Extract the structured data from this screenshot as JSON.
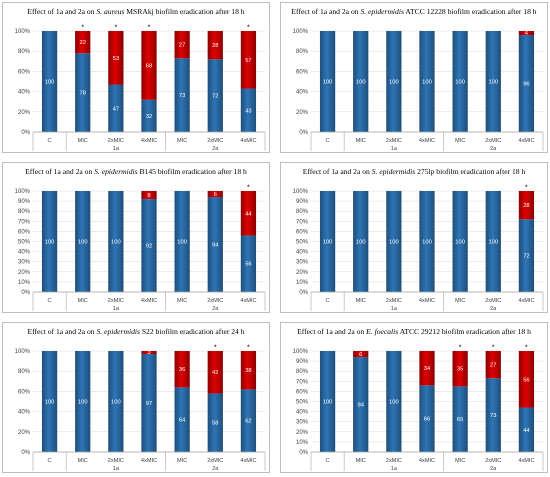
{
  "colors": {
    "blue": "#2e75b6",
    "blue_dark": "#1f4e79",
    "red": "#e00000",
    "red_dark": "#8b0000",
    "grid": "#d9d9d9",
    "axis": "#a6a6a6"
  },
  "chart_data": [
    {
      "type": "bar",
      "stacked": true,
      "title_parts": [
        "Effect of 1a and 2a on ",
        "S. aureus",
        " MSRAkj  biofilm eradication after 18 h"
      ],
      "categories": [
        "C",
        "MIC",
        "2xMIC",
        "4xMIC",
        "MIC",
        "2xMIC",
        "4xMIC"
      ],
      "groups": [
        {
          "label": "1a",
          "from": 1,
          "to": 3
        },
        {
          "label": "2a",
          "from": 4,
          "to": 6
        }
      ],
      "series": [
        {
          "values": [
            100,
            78,
            47,
            32,
            73,
            72,
            43
          ],
          "labels": [
            "100",
            "78",
            "47",
            "32",
            "73",
            "72",
            "43"
          ]
        },
        {
          "values": [
            0,
            22,
            53,
            68,
            27,
            28,
            57
          ],
          "labels": [
            "",
            "22",
            "53",
            "68",
            "27",
            "28",
            "57"
          ]
        }
      ],
      "significant": [
        false,
        true,
        true,
        true,
        false,
        false,
        true
      ],
      "star": "*",
      "ylim": [
        0,
        100
      ],
      "yticks": [
        "0%",
        "20%",
        "40%",
        "60%",
        "80%",
        "100%"
      ]
    },
    {
      "type": "bar",
      "stacked": true,
      "title_parts": [
        "Effect of 1a and 2a on ",
        "S. epidermidis",
        " ATCC 12228 biofilm eradication after 18 h"
      ],
      "categories": [
        "C",
        "MIC",
        "2xMIC",
        "4xMIC",
        "MIC",
        "2xMIC",
        "4xMIC"
      ],
      "groups": [
        {
          "label": "1a",
          "from": 1,
          "to": 3
        },
        {
          "label": "2a",
          "from": 4,
          "to": 6
        }
      ],
      "series": [
        {
          "values": [
            100,
            100,
            100,
            100,
            100,
            100,
            96
          ],
          "labels": [
            "100",
            "100",
            "100",
            "100",
            "100",
            "100",
            "96"
          ]
        },
        {
          "values": [
            0,
            0,
            0,
            0,
            0,
            0,
            4
          ],
          "labels": [
            "",
            "",
            "",
            "",
            "",
            "",
            "4"
          ]
        }
      ],
      "significant": [
        false,
        false,
        false,
        false,
        false,
        false,
        false
      ],
      "star": "*",
      "ylim": [
        0,
        100
      ],
      "yticks": [
        "0%",
        "20%",
        "40%",
        "60%",
        "80%",
        "100%"
      ]
    },
    {
      "type": "bar",
      "stacked": true,
      "title_parts": [
        "Effect of 1a and 2a on ",
        "S. epidermidis",
        " B145 biofilm eradication after 18 h"
      ],
      "categories": [
        "C",
        "MIC",
        "2xMIC",
        "4xMIC",
        "MIC",
        "2xMIC",
        "4xMIC"
      ],
      "groups": [
        {
          "label": "1a",
          "from": 1,
          "to": 3
        },
        {
          "label": "2a",
          "from": 4,
          "to": 6
        }
      ],
      "series": [
        {
          "values": [
            100,
            100,
            100,
            92,
            100,
            94,
            56
          ],
          "labels": [
            "100",
            "100",
            "100",
            "92",
            "100",
            "94",
            "56"
          ]
        },
        {
          "values": [
            0,
            0,
            0,
            8,
            0,
            6,
            44
          ],
          "labels": [
            "",
            "",
            "",
            "8",
            "",
            "6",
            "44"
          ]
        }
      ],
      "significant": [
        false,
        false,
        false,
        false,
        false,
        false,
        true
      ],
      "star": "*",
      "ylim": [
        0,
        100
      ],
      "yticks": [
        "0%",
        "10%",
        "20%",
        "30%",
        "40%",
        "50%",
        "60%",
        "70%",
        "80%",
        "90%",
        "100%"
      ]
    },
    {
      "type": "bar",
      "stacked": true,
      "title_parts": [
        "Effect of 1a and 2a on ",
        "S. epidermidis",
        " 275lp biofilm eradication after 18 h"
      ],
      "categories": [
        "C",
        "MIC",
        "2xMIC",
        "4xMIC",
        "MIC",
        "2xMIC",
        "4xMIC"
      ],
      "groups": [
        {
          "label": "1a",
          "from": 1,
          "to": 3
        },
        {
          "label": "2a",
          "from": 4,
          "to": 6
        }
      ],
      "series": [
        {
          "values": [
            100,
            100,
            100,
            100,
            100,
            100,
            72
          ],
          "labels": [
            "100",
            "100",
            "100",
            "100",
            "100",
            "100",
            "72"
          ]
        },
        {
          "values": [
            0,
            0,
            0,
            0,
            0,
            0,
            28
          ],
          "labels": [
            "",
            "",
            "",
            "",
            "",
            "",
            "28"
          ]
        }
      ],
      "significant": [
        false,
        false,
        false,
        false,
        false,
        false,
        true
      ],
      "star": "*",
      "ylim": [
        0,
        100
      ],
      "yticks": [
        "0%",
        "10%",
        "20%",
        "30%",
        "40%",
        "50%",
        "60%",
        "70%",
        "80%",
        "90%",
        "100%"
      ]
    },
    {
      "type": "bar",
      "stacked": true,
      "title_parts": [
        "Effect of 1a and 2a on ",
        "S. epidermidis",
        " S22 biofilm eradication after 24 h"
      ],
      "categories": [
        "C",
        "MIC",
        "2xMIC",
        "4xMIC",
        "MIC",
        "2xMIC",
        "4xMIC"
      ],
      "groups": [
        {
          "label": "1a",
          "from": 1,
          "to": 3
        },
        {
          "label": "2a",
          "from": 4,
          "to": 6
        }
      ],
      "series": [
        {
          "values": [
            100,
            100,
            100,
            97,
            64,
            58,
            62
          ],
          "labels": [
            "100",
            "100",
            "100",
            "97",
            "64",
            "58",
            "62"
          ]
        },
        {
          "values": [
            0,
            0,
            0,
            3,
            36,
            42,
            38
          ],
          "labels": [
            "",
            "",
            "",
            "3",
            "36",
            "42",
            "38"
          ]
        }
      ],
      "significant": [
        false,
        false,
        false,
        false,
        false,
        true,
        true
      ],
      "star": "*",
      "ylim": [
        0,
        100
      ],
      "yticks": [
        "0%",
        "20%",
        "40%",
        "60%",
        "80%",
        "100%"
      ]
    },
    {
      "type": "bar",
      "stacked": true,
      "title_parts": [
        "Effect of 1a and 2a on ",
        "E. foecalis",
        " ATCC 29212 biofilm eradication after 18 h"
      ],
      "categories": [
        "C",
        "MIC",
        "2xMIC",
        "4xMIC",
        "MIC",
        "2xMIC",
        "4xMIC"
      ],
      "groups": [
        {
          "label": "1a",
          "from": 1,
          "to": 3
        },
        {
          "label": "2a",
          "from": 4,
          "to": 6
        }
      ],
      "series": [
        {
          "values": [
            100,
            94,
            100,
            66,
            65,
            73,
            44
          ],
          "labels": [
            "100",
            "94",
            "100",
            "66",
            "65",
            "73",
            "44"
          ]
        },
        {
          "values": [
            0,
            6,
            0,
            34,
            35,
            27,
            56
          ],
          "labels": [
            "",
            "6",
            "",
            "34",
            "35",
            "27",
            "56"
          ]
        }
      ],
      "significant": [
        false,
        false,
        false,
        false,
        true,
        true,
        true
      ],
      "star": "*",
      "ylim": [
        0,
        100
      ],
      "yticks": [
        "0%",
        "10%",
        "20%",
        "30%",
        "40%",
        "50%",
        "60%",
        "70%",
        "80%",
        "90%",
        "100%"
      ]
    }
  ]
}
